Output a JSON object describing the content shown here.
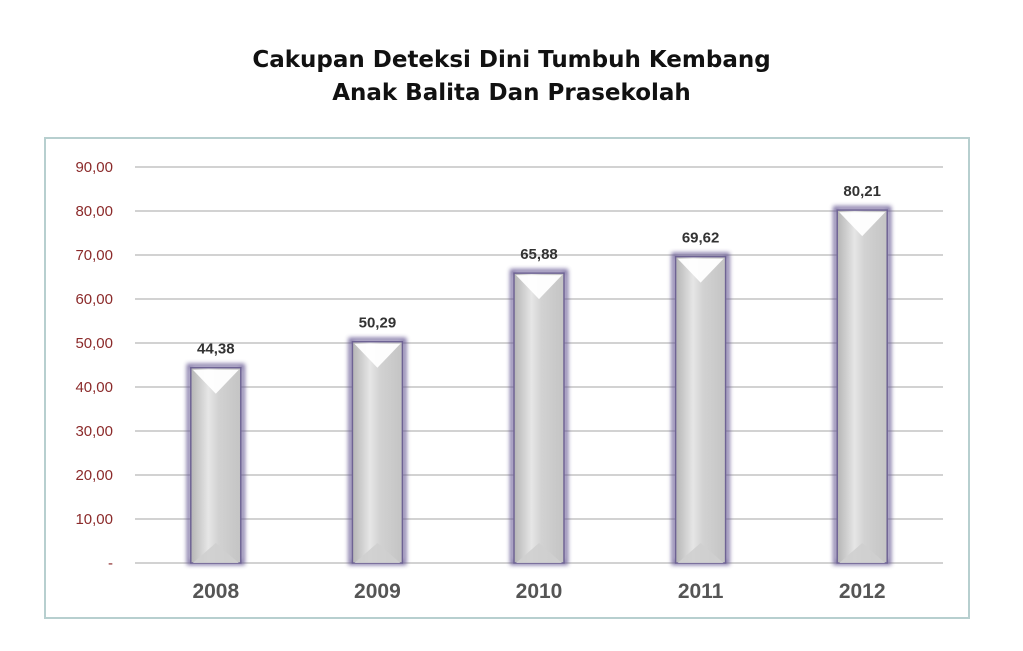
{
  "chart_data": {
    "type": "bar",
    "title_lines": [
      "Cakupan Deteksi Dini Tumbuh Kembang",
      "Anak Balita Dan Prasekolah"
    ],
    "categories": [
      "2008",
      "2009",
      "2010",
      "2011",
      "2012"
    ],
    "values": [
      44.38,
      50.29,
      65.88,
      69.62,
      80.21
    ],
    "value_labels": [
      "44,38",
      "50,29",
      "65,88",
      "69,62",
      "80,21"
    ],
    "y_ticks": [
      0,
      10,
      20,
      30,
      40,
      50,
      60,
      70,
      80,
      90
    ],
    "y_tick_labels": [
      "-",
      "10,00",
      "20,00",
      "30,00",
      "40,00",
      "50,00",
      "60,00",
      "70,00",
      "80,00",
      "90,00"
    ],
    "ylim": [
      0,
      90
    ],
    "grid": true,
    "legend": "none",
    "colors": {
      "bar_face": "#d6d6d6",
      "bar_glow": "#6b5d96",
      "tick_text": "#8b2a2a",
      "grid": "#b8b8b8"
    }
  }
}
